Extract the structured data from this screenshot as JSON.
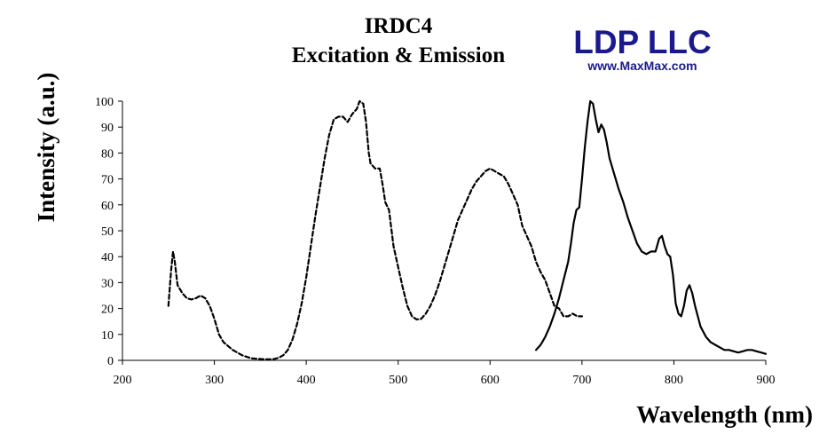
{
  "chart_data": {
    "type": "line",
    "title": "IRDC4",
    "subtitle": "Excitation & Emission",
    "xlabel": "Wavelength (nm)",
    "ylabel": "Intensity (a.u.)",
    "xlim": [
      200,
      900
    ],
    "ylim": [
      0,
      100
    ],
    "x_ticks": [
      200,
      300,
      400,
      500,
      600,
      700,
      800,
      900
    ],
    "y_ticks": [
      0,
      10,
      20,
      30,
      40,
      50,
      60,
      70,
      80,
      90,
      100
    ],
    "grid": false,
    "legend": "none",
    "series": [
      {
        "style": "dashed",
        "color": "#000000",
        "x": [
          250,
          253,
          255,
          257,
          260,
          265,
          270,
          275,
          280,
          285,
          290,
          295,
          300,
          305,
          310,
          320,
          330,
          340,
          350,
          355,
          360,
          365,
          370,
          375,
          380,
          385,
          390,
          395,
          400,
          405,
          410,
          415,
          420,
          425,
          430,
          435,
          440,
          445,
          450,
          455,
          458,
          462,
          465,
          468,
          470,
          475,
          480,
          483,
          486,
          490,
          495,
          500,
          505,
          510,
          515,
          520,
          525,
          530,
          535,
          540,
          545,
          550,
          555,
          560,
          565,
          570,
          575,
          580,
          585,
          590,
          595,
          600,
          605,
          610,
          615,
          620,
          625,
          630,
          635,
          640,
          645,
          650,
          655,
          660,
          665,
          670,
          675,
          680,
          685,
          690,
          695,
          700
        ],
        "y": [
          21,
          35,
          42,
          38,
          29,
          26,
          24,
          23.5,
          24,
          25,
          24,
          21,
          16,
          10,
          7,
          4,
          2,
          0.8,
          0.5,
          0.4,
          0.4,
          0.5,
          1,
          2,
          4,
          8,
          14,
          22,
          32,
          44,
          56,
          67,
          78,
          87,
          93,
          94,
          94,
          92,
          95,
          97,
          100,
          99,
          92,
          80,
          76,
          74,
          74,
          68,
          61,
          58,
          44,
          36,
          28,
          21,
          17,
          15.8,
          16,
          18,
          21,
          25,
          30,
          36,
          42,
          48,
          54,
          58,
          62,
          66,
          69,
          71,
          73,
          74,
          73,
          72,
          71,
          68,
          64,
          60,
          52,
          48,
          44,
          38,
          34,
          31,
          26,
          21,
          20,
          17,
          17,
          18,
          17,
          17
        ]
      },
      {
        "style": "solid",
        "color": "#000000",
        "x": [
          650,
          655,
          660,
          665,
          670,
          675,
          680,
          685,
          688,
          691,
          694,
          697,
          700,
          703,
          706,
          709,
          712,
          715,
          718,
          721,
          724,
          727,
          730,
          735,
          740,
          745,
          750,
          755,
          760,
          765,
          770,
          775,
          780,
          784,
          787,
          790,
          793,
          796,
          799,
          802,
          805,
          808,
          811,
          814,
          817,
          820,
          823,
          826,
          829,
          832,
          835,
          840,
          845,
          850,
          855,
          860,
          865,
          870,
          875,
          880,
          885,
          890,
          895,
          900
        ],
        "y": [
          4,
          6,
          9,
          13,
          18,
          24,
          31,
          38,
          45,
          53,
          58,
          59,
          70,
          82,
          92,
          100,
          99,
          93,
          88,
          91,
          89,
          84,
          78,
          72,
          66,
          61,
          55,
          50,
          45,
          42,
          41,
          42,
          42,
          47,
          48,
          44,
          41,
          40,
          33,
          22,
          18,
          17,
          21,
          27,
          29,
          26,
          21,
          17,
          13,
          11,
          9,
          7,
          6,
          5,
          4,
          4,
          3.5,
          3,
          3.5,
          4,
          4,
          3.5,
          3,
          2.5
        ]
      }
    ]
  },
  "logo": {
    "company": "LDP LLC",
    "website": "www.MaxMax.com",
    "color": "#1a1a8c"
  }
}
